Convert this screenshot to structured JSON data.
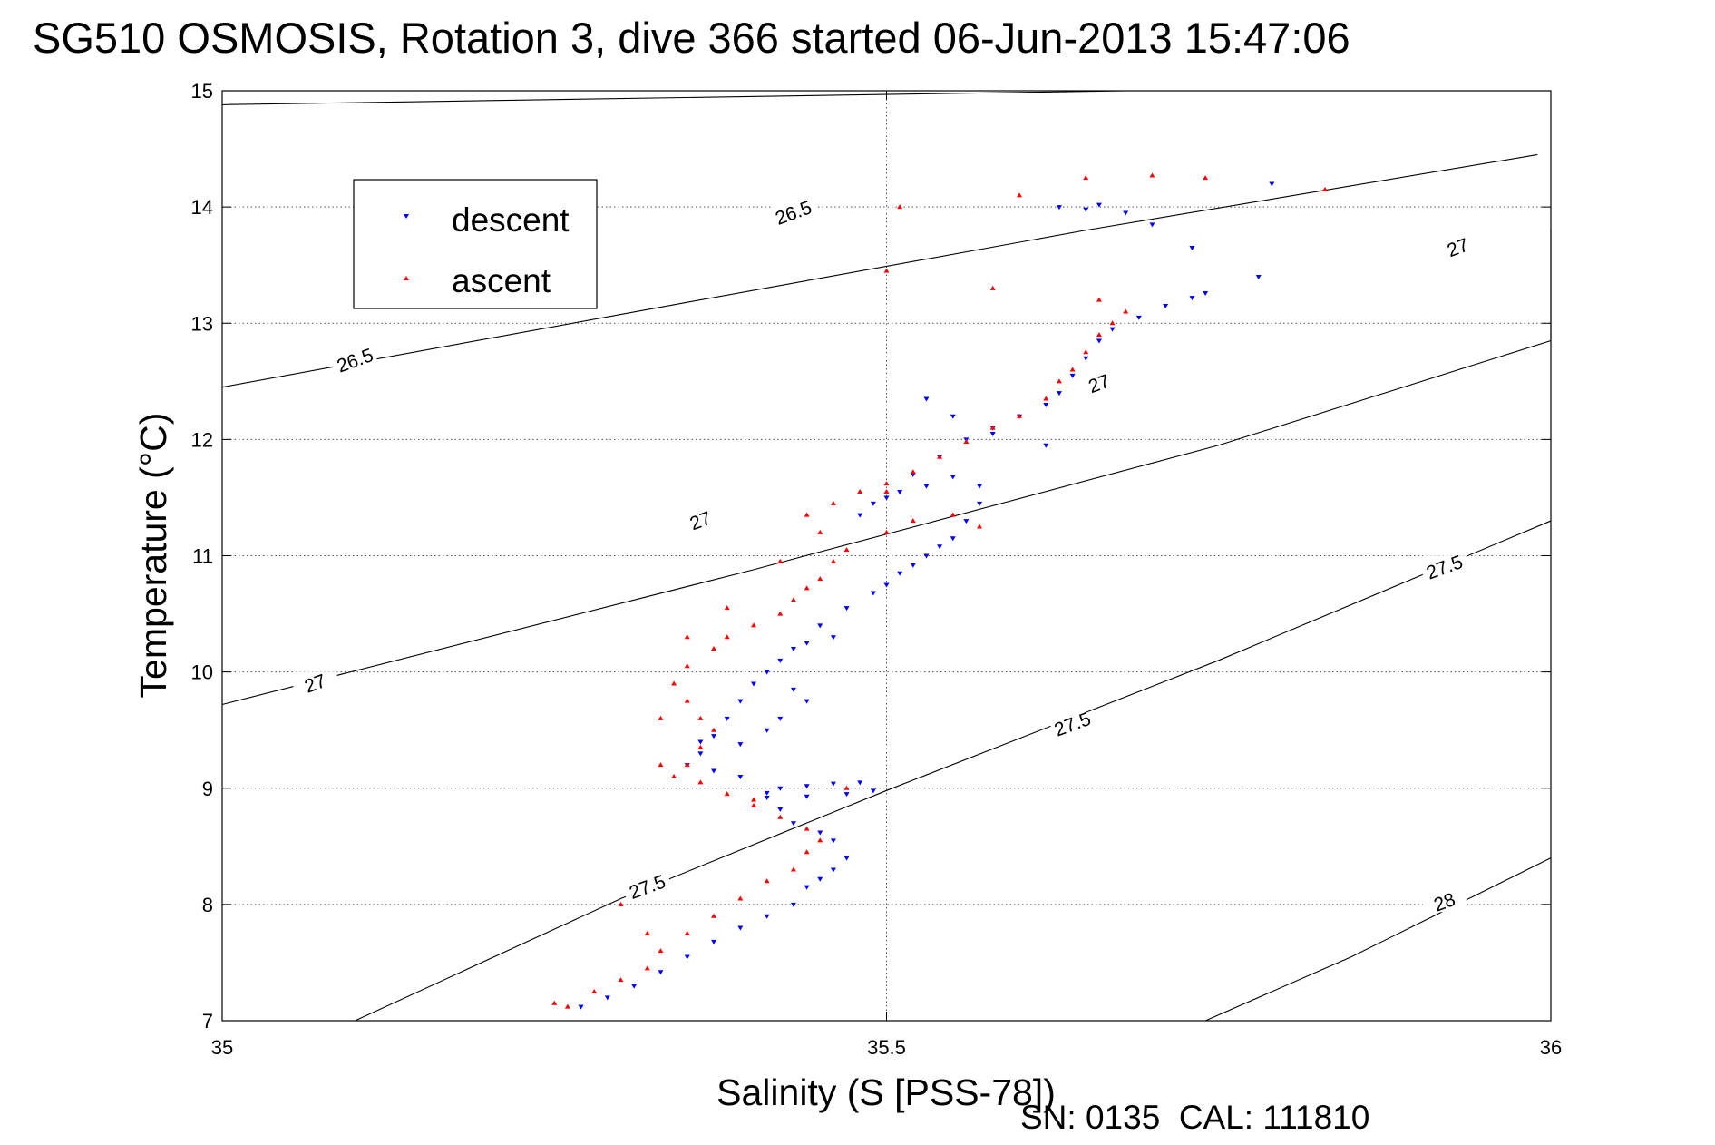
{
  "chart_data": {
    "type": "scatter",
    "title": "SG510 OSMOSIS, Rotation 3, dive 366 started 06-Jun-2013 15:47:06",
    "xlabel": "Salinity (S [PSS-78])",
    "ylabel": "Temperature (°C)",
    "xlim": [
      35,
      36
    ],
    "ylim": [
      7,
      15
    ],
    "xticks": [
      35,
      35.5,
      36
    ],
    "xtick_labels": [
      "35",
      "35.5",
      "36"
    ],
    "yticks": [
      7,
      8,
      9,
      10,
      11,
      12,
      13,
      14,
      15
    ],
    "ytick_labels": [
      "7",
      "8",
      "9",
      "10",
      "11",
      "12",
      "13",
      "14",
      "15"
    ],
    "grid": true,
    "legend_position": "upper-left",
    "footer": "SN: 0135  CAL: 111810",
    "isopycnals": [
      {
        "label": "26.5",
        "points": [
          [
            35.0,
            14.88
          ],
          [
            35.68,
            15.0
          ]
        ],
        "label_positions": []
      },
      {
        "label": "26.5",
        "points": [
          [
            35.0,
            12.45
          ],
          [
            35.35,
            13.18
          ],
          [
            35.65,
            13.8
          ],
          [
            35.99,
            14.45
          ]
        ],
        "label_positions": [
          [
            35.1,
            12.68
          ],
          [
            35.43,
            13.95
          ]
        ]
      },
      {
        "label": "27",
        "points": [
          [
            35.0,
            9.72
          ],
          [
            35.4,
            10.88
          ],
          [
            35.75,
            11.95
          ],
          [
            36.0,
            12.85
          ],
          [
            36.0,
            13.82
          ]
        ],
        "label_positions": [
          [
            35.07,
            9.9
          ],
          [
            35.36,
            11.3
          ],
          [
            35.66,
            12.48
          ],
          [
            35.93,
            13.65
          ]
        ]
      },
      {
        "label": "27.5",
        "points": [
          [
            35.1,
            7.0
          ],
          [
            35.3,
            8.05
          ],
          [
            35.5,
            8.98
          ],
          [
            35.75,
            10.1
          ],
          [
            36.0,
            11.3
          ]
        ],
        "label_positions": [
          [
            35.32,
            8.15
          ],
          [
            35.64,
            9.55
          ],
          [
            35.92,
            10.9
          ]
        ]
      },
      {
        "label": "28",
        "points": [
          [
            35.74,
            7.0
          ],
          [
            35.85,
            7.55
          ],
          [
            36.0,
            8.4
          ]
        ],
        "label_positions": [
          [
            35.92,
            8.02
          ]
        ]
      }
    ],
    "series": [
      {
        "name": "descent",
        "marker": "triangle-down",
        "color": "#0000ff",
        "points": [
          [
            35.27,
            7.12
          ],
          [
            35.29,
            7.2
          ],
          [
            35.31,
            7.3
          ],
          [
            35.33,
            7.42
          ],
          [
            35.35,
            7.55
          ],
          [
            35.37,
            7.68
          ],
          [
            35.39,
            7.8
          ],
          [
            35.41,
            7.9
          ],
          [
            35.43,
            8.0
          ],
          [
            35.44,
            8.15
          ],
          [
            35.45,
            8.22
          ],
          [
            35.46,
            8.3
          ],
          [
            35.47,
            8.4
          ],
          [
            35.46,
            8.55
          ],
          [
            35.45,
            8.62
          ],
          [
            35.43,
            8.7
          ],
          [
            35.42,
            8.82
          ],
          [
            35.41,
            8.92
          ],
          [
            35.42,
            9.0
          ],
          [
            35.44,
            9.02
          ],
          [
            35.46,
            9.04
          ],
          [
            35.48,
            9.05
          ],
          [
            35.49,
            8.98
          ],
          [
            35.47,
            8.95
          ],
          [
            35.44,
            8.93
          ],
          [
            35.41,
            8.96
          ],
          [
            35.39,
            9.1
          ],
          [
            35.37,
            9.15
          ],
          [
            35.35,
            9.2
          ],
          [
            35.36,
            9.3
          ],
          [
            35.37,
            9.45
          ],
          [
            35.38,
            9.6
          ],
          [
            35.39,
            9.75
          ],
          [
            35.4,
            9.9
          ],
          [
            35.41,
            10.0
          ],
          [
            35.42,
            10.1
          ],
          [
            35.43,
            10.2
          ],
          [
            35.44,
            10.25
          ],
          [
            35.46,
            10.3
          ],
          [
            35.45,
            10.4
          ],
          [
            35.47,
            10.55
          ],
          [
            35.49,
            10.68
          ],
          [
            35.5,
            10.75
          ],
          [
            35.51,
            10.85
          ],
          [
            35.52,
            10.92
          ],
          [
            35.53,
            11.0
          ],
          [
            35.54,
            11.08
          ],
          [
            35.55,
            11.15
          ],
          [
            35.56,
            11.3
          ],
          [
            35.57,
            11.45
          ],
          [
            35.57,
            11.6
          ],
          [
            35.55,
            11.68
          ],
          [
            35.53,
            11.6
          ],
          [
            35.51,
            11.55
          ],
          [
            35.49,
            11.45
          ],
          [
            35.48,
            11.35
          ],
          [
            35.5,
            11.5
          ],
          [
            35.52,
            11.7
          ],
          [
            35.54,
            11.85
          ],
          [
            35.56,
            12.0
          ],
          [
            35.58,
            12.1
          ],
          [
            35.6,
            12.2
          ],
          [
            35.62,
            12.3
          ],
          [
            35.63,
            12.4
          ],
          [
            35.64,
            12.55
          ],
          [
            35.65,
            12.7
          ],
          [
            35.66,
            12.85
          ],
          [
            35.67,
            12.95
          ],
          [
            35.69,
            13.05
          ],
          [
            35.71,
            13.15
          ],
          [
            35.73,
            13.22
          ],
          [
            35.74,
            13.26
          ],
          [
            35.63,
            14.0
          ],
          [
            35.65,
            13.98
          ],
          [
            35.68,
            13.95
          ],
          [
            35.66,
            14.02
          ],
          [
            35.7,
            13.85
          ],
          [
            35.73,
            13.65
          ],
          [
            35.79,
            14.2
          ],
          [
            35.78,
            13.4
          ],
          [
            35.62,
            11.95
          ],
          [
            35.53,
            12.35
          ],
          [
            35.55,
            12.2
          ],
          [
            35.58,
            12.05
          ],
          [
            35.44,
            9.75
          ],
          [
            35.43,
            9.85
          ],
          [
            35.42,
            9.6
          ],
          [
            35.41,
            9.5
          ],
          [
            35.39,
            9.38
          ],
          [
            35.36,
            9.4
          ]
        ]
      },
      {
        "name": "ascent",
        "marker": "triangle-up",
        "color": "#ff0000",
        "points": [
          [
            35.26,
            7.12
          ],
          [
            35.28,
            7.25
          ],
          [
            35.3,
            7.35
          ],
          [
            35.32,
            7.45
          ],
          [
            35.33,
            7.6
          ],
          [
            35.35,
            7.75
          ],
          [
            35.37,
            7.9
          ],
          [
            35.39,
            8.05
          ],
          [
            35.41,
            8.2
          ],
          [
            35.43,
            8.3
          ],
          [
            35.44,
            8.45
          ],
          [
            35.45,
            8.55
          ],
          [
            35.44,
            8.65
          ],
          [
            35.42,
            8.75
          ],
          [
            35.4,
            8.85
          ],
          [
            35.38,
            8.95
          ],
          [
            35.36,
            9.05
          ],
          [
            35.34,
            9.1
          ],
          [
            35.35,
            9.2
          ],
          [
            35.36,
            9.35
          ],
          [
            35.37,
            9.5
          ],
          [
            35.36,
            9.6
          ],
          [
            35.35,
            9.75
          ],
          [
            35.34,
            9.9
          ],
          [
            35.35,
            10.05
          ],
          [
            35.37,
            10.2
          ],
          [
            35.38,
            10.3
          ],
          [
            35.4,
            10.4
          ],
          [
            35.42,
            10.5
          ],
          [
            35.43,
            10.62
          ],
          [
            35.44,
            10.72
          ],
          [
            35.45,
            10.8
          ],
          [
            35.46,
            10.95
          ],
          [
            35.47,
            11.05
          ],
          [
            35.45,
            11.2
          ],
          [
            35.44,
            11.35
          ],
          [
            35.46,
            11.45
          ],
          [
            35.48,
            11.55
          ],
          [
            35.5,
            11.62
          ],
          [
            35.52,
            11.72
          ],
          [
            35.54,
            11.85
          ],
          [
            35.56,
            11.98
          ],
          [
            35.58,
            12.1
          ],
          [
            35.6,
            12.2
          ],
          [
            35.62,
            12.35
          ],
          [
            35.63,
            12.5
          ],
          [
            35.64,
            12.6
          ],
          [
            35.65,
            12.75
          ],
          [
            35.66,
            12.9
          ],
          [
            35.67,
            13.0
          ],
          [
            35.68,
            13.1
          ],
          [
            35.66,
            13.2
          ],
          [
            35.6,
            14.1
          ],
          [
            35.65,
            14.25
          ],
          [
            35.7,
            14.27
          ],
          [
            35.74,
            14.25
          ],
          [
            35.51,
            14.0
          ],
          [
            35.5,
            13.45
          ],
          [
            35.58,
            13.3
          ],
          [
            35.83,
            14.15
          ],
          [
            35.55,
            11.35
          ],
          [
            35.57,
            11.25
          ],
          [
            35.52,
            11.3
          ],
          [
            35.5,
            11.2
          ],
          [
            35.42,
            10.95
          ],
          [
            35.35,
            10.3
          ],
          [
            35.38,
            10.55
          ],
          [
            35.33,
            9.6
          ],
          [
            35.33,
            9.2
          ],
          [
            35.4,
            8.9
          ],
          [
            35.47,
            9.0
          ],
          [
            35.3,
            8.0
          ],
          [
            35.32,
            7.75
          ],
          [
            35.25,
            7.15
          ],
          [
            35.5,
            11.55
          ]
        ]
      }
    ]
  }
}
